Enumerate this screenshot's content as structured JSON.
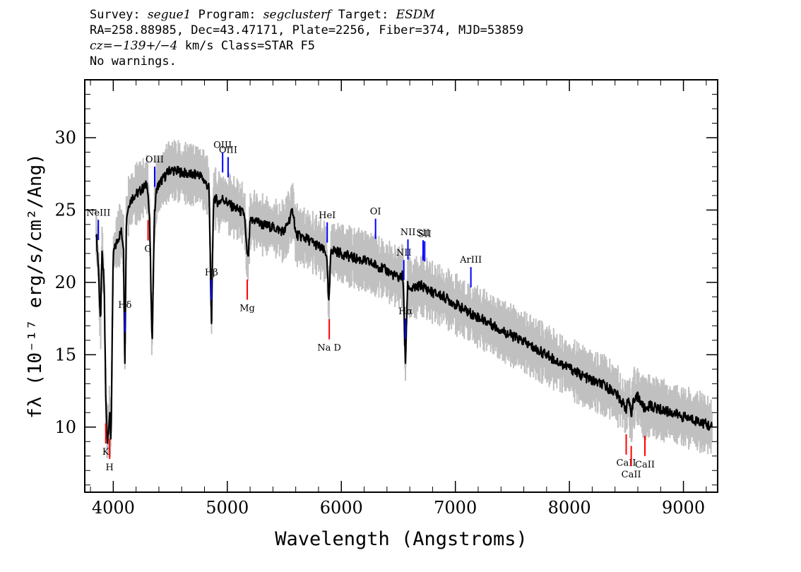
{
  "header": {
    "survey_label": "Survey:",
    "survey_value": "segue1",
    "program_label": "Program:",
    "program_value": "segclusterf",
    "target_label": "Target:",
    "target_value": "ESDM",
    "line2": "RA=258.88985, Dec=43.47171, Plate=2256, Fiber=374, MJD=53859",
    "cz_label": "cz=",
    "cz_value": "−139+/−4",
    "cz_rest": " km/s Class=STAR F5",
    "line4": "No warnings."
  },
  "chart_data": {
    "type": "line",
    "xlabel": "Wavelength (Angstroms)",
    "ylabel": "fλ (10⁻¹⁷ erg/s/cm²/Ang)",
    "xlim": [
      3750,
      9300
    ],
    "ylim": [
      5.5,
      34
    ],
    "x_ticks": [
      4000,
      5000,
      6000,
      7000,
      8000,
      9000
    ],
    "y_ticks": [
      10,
      15,
      20,
      25,
      30
    ],
    "x_tick_labels": [
      "4000",
      "5000",
      "6000",
      "7000",
      "8000",
      "9000"
    ],
    "y_tick_labels": [
      "10",
      "15",
      "20",
      "25",
      "30"
    ],
    "grid": false,
    "colors": {
      "flux": "#000000",
      "noise": "#c0c0c0",
      "emission": "#0000ff",
      "absorption": "#ff0000"
    },
    "series": [
      {
        "x": [
          3850,
          3870,
          3889,
          3900,
          3920,
          3935,
          3950,
          3968,
          3980,
          4000,
          4040,
          4070,
          4090,
          4101,
          4115,
          4140,
          4180,
          4220,
          4260,
          4300,
          4320,
          4340,
          4360,
          4380,
          4420,
          4470,
          4500,
          4550,
          4600,
          4650,
          4700,
          4750,
          4800,
          4840,
          4861,
          4880,
          4920,
          4960,
          5000,
          5050,
          5100,
          5150,
          5167,
          5183,
          5200,
          5250,
          5300,
          5400,
          5500,
          5577,
          5600,
          5700,
          5800,
          5870,
          5890,
          5910,
          6000,
          6100,
          6200,
          6300,
          6400,
          6500,
          6540,
          6563,
          6580,
          6620,
          6700,
          6800,
          6900,
          7000,
          7100,
          7200,
          7300,
          7400,
          7500,
          7600,
          7700,
          7800,
          7900,
          8000,
          8100,
          8200,
          8300,
          8400,
          8498,
          8520,
          8542,
          8560,
          8600,
          8662,
          8700,
          8800,
          8900,
          9000,
          9100,
          9200,
          9250
        ],
        "y": [
          23.5,
          21.0,
          17.0,
          22.0,
          20.0,
          11.5,
          9.0,
          11.0,
          9.0,
          22.0,
          23.0,
          23.5,
          22.5,
          14.0,
          24.5,
          25.5,
          26.0,
          26.2,
          26.5,
          26.8,
          24.0,
          15.5,
          24.5,
          26.5,
          27.0,
          27.5,
          27.8,
          27.7,
          27.6,
          27.5,
          27.4,
          27.5,
          27.0,
          26.5,
          17.0,
          26.0,
          25.5,
          25.8,
          25.5,
          25.2,
          25.0,
          24.7,
          22.5,
          21.5,
          24.2,
          24.3,
          24.0,
          23.8,
          23.5,
          25.0,
          23.3,
          23.0,
          22.5,
          22.0,
          18.5,
          22.3,
          22.0,
          21.7,
          21.5,
          21.2,
          20.8,
          20.3,
          20.5,
          14.3,
          19.8,
          19.5,
          19.8,
          19.3,
          19.0,
          18.5,
          18.0,
          17.6,
          17.2,
          16.7,
          16.3,
          15.9,
          15.4,
          15.0,
          14.5,
          14.1,
          13.6,
          13.2,
          12.9,
          12.4,
          11.3,
          12.0,
          10.5,
          12.0,
          12.1,
          11.2,
          11.5,
          11.2,
          11.0,
          10.7,
          10.5,
          10.2,
          10.0
        ]
      }
    ],
    "emission_lines": [
      {
        "label": "NeIII",
        "x": 3869
      },
      {
        "label": "Hδ",
        "x": 4102
      },
      {
        "label": "OIII",
        "x": 4363
      },
      {
        "label": "Hβ",
        "x": 4861
      },
      {
        "label": "OIII",
        "x": 4959
      },
      {
        "label": "OIII",
        "x": 5007
      },
      {
        "label": "HeI",
        "x": 5876
      },
      {
        "label": "OI",
        "x": 6300
      },
      {
        "label": "NII",
        "x": 6548
      },
      {
        "label": "Hα",
        "x": 6563
      },
      {
        "label": "NII",
        "x": 6584
      },
      {
        "label": "SII",
        "x": 6717
      },
      {
        "label": "SII",
        "x": 6731
      },
      {
        "label": "ArIII",
        "x": 7136
      }
    ],
    "absorption_lines": [
      {
        "label": "K",
        "x": 3934
      },
      {
        "label": "H",
        "x": 3968
      },
      {
        "label": "G",
        "x": 4305
      },
      {
        "label": "Mg",
        "x": 5175
      },
      {
        "label": "Na D",
        "x": 5894
      },
      {
        "label": "CaII",
        "x": 8498
      },
      {
        "label": "CaII",
        "x": 8542
      },
      {
        "label": "CaII",
        "x": 8662
      }
    ]
  }
}
